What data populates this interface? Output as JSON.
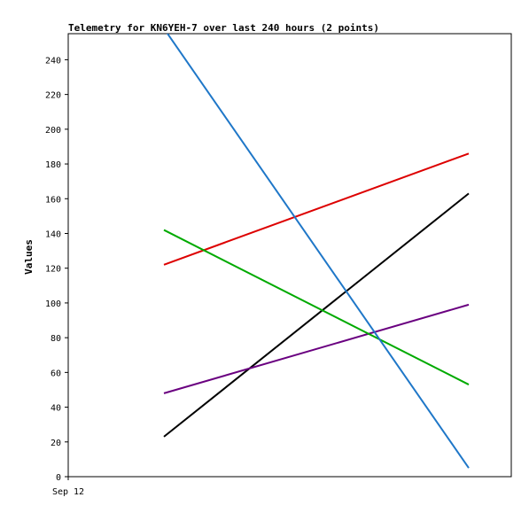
{
  "chart_data": {
    "type": "line",
    "title": "Telemetry for KN6YEH-7 over last 240 hours (2 points)",
    "xlabel": "",
    "ylabel": "Values",
    "x_tick_labels": [
      "Sep 12"
    ],
    "ylim": [
      0,
      255
    ],
    "y_ticks": [
      0,
      20,
      40,
      60,
      80,
      100,
      120,
      140,
      160,
      180,
      200,
      220,
      240
    ],
    "x": [
      1,
      2
    ],
    "grid": false,
    "series": [
      {
        "color": "#dd0000",
        "values": [
          122,
          186
        ]
      },
      {
        "color": "#000000",
        "values": [
          23,
          163
        ]
      },
      {
        "color": "#6a0080",
        "values": [
          48,
          99
        ]
      },
      {
        "color": "#00aa00",
        "values": [
          142,
          53
        ]
      },
      {
        "color": "#1f77c8",
        "values": [
          258,
          5
        ]
      }
    ]
  }
}
